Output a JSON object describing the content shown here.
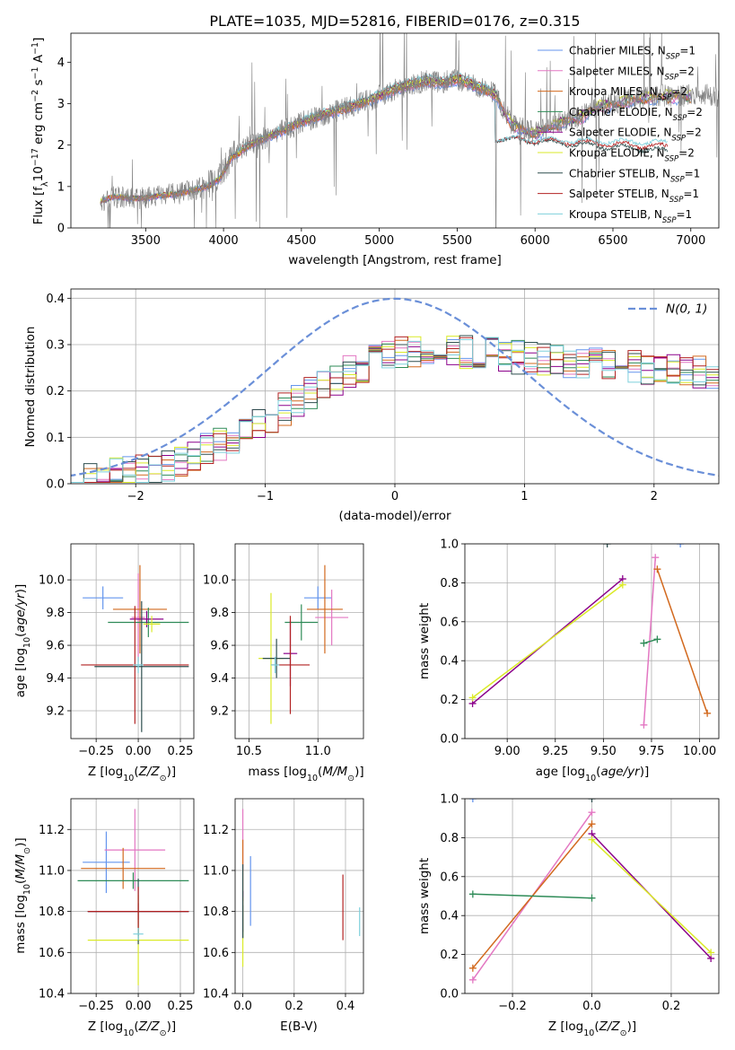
{
  "title": "PLATE=1035, MJD=52816, FIBERID=0176, z=0.315",
  "models": [
    {
      "name": "Chabrier MILES, N",
      "nssp": "1",
      "color": "#6495ED"
    },
    {
      "name": "Salpeter MILES, N",
      "nssp": "2",
      "color": "#E377C2"
    },
    {
      "name": "Kroupa MILES, N",
      "nssp": "2",
      "color": "#D2691E"
    },
    {
      "name": "Chabrier ELODIE, N",
      "nssp": "2",
      "color": "#2E8B57"
    },
    {
      "name": "Salpeter ELODIE, N",
      "nssp": "2",
      "color": "#8B008B"
    },
    {
      "name": "Kroupa ELODIE, N",
      "nssp": "2",
      "color": "#DAEA28"
    },
    {
      "name": "Chabrier STELIB, N",
      "nssp": "1",
      "color": "#2F4F4F"
    },
    {
      "name": "Salpeter STELIB, N",
      "nssp": "1",
      "color": "#B22222"
    },
    {
      "name": "Kroupa STELIB, N",
      "nssp": "1",
      "color": "#7ED0DC"
    }
  ],
  "chart_data": [
    {
      "id": "spectrum",
      "type": "line",
      "xlabel": "wavelength [Angstrom, rest frame]",
      "ylabel": "Flux [f",
      "xlim": [
        3020,
        7180
      ],
      "ylim": [
        0,
        4.7
      ],
      "xticks": [
        3500,
        4000,
        4500,
        5000,
        5500,
        6000,
        6500,
        7000
      ],
      "yticks": [
        0,
        1,
        2,
        3,
        4
      ],
      "data_color": "#808080",
      "continuum_x": [
        3210,
        3300,
        3400,
        3500,
        3600,
        3700,
        3800,
        3900,
        3980,
        4050,
        4150,
        4250,
        4350,
        4500,
        4650,
        4800,
        4950,
        5100,
        5200,
        5300,
        5400,
        5500,
        5600,
        5700,
        5750,
        5850,
        5950,
        6000,
        6100,
        6200,
        6300,
        6400,
        6500,
        6600,
        6700,
        6800
      ],
      "continuum_y": [
        0.65,
        0.75,
        0.72,
        0.72,
        0.78,
        0.82,
        0.9,
        1.0,
        1.2,
        1.7,
        1.95,
        2.15,
        2.3,
        2.55,
        2.75,
        2.9,
        3.1,
        3.35,
        3.45,
        3.55,
        3.5,
        3.6,
        3.45,
        3.3,
        3.2,
        2.5,
        2.35,
        2.3,
        2.45,
        2.6,
        2.7,
        2.95,
        3.0,
        3.1,
        3.15,
        3.2
      ],
      "model_x_end": [
        7000,
        7000,
        7000,
        7000,
        7000,
        7000,
        6850,
        6850,
        6850
      ],
      "stelib_red_end_y": [
        1.9,
        2.0,
        2.1
      ]
    },
    {
      "id": "residuals",
      "type": "step",
      "xlabel": "(data-model)/error",
      "ylabel": "Normed distribution",
      "xlim": [
        -2.5,
        2.5
      ],
      "ylim": [
        0,
        0.42
      ],
      "xticks": [
        -2,
        -1,
        0,
        1,
        2
      ],
      "yticks": [
        0.0,
        0.1,
        0.2,
        0.3,
        0.4
      ],
      "gauss_label": "N(0, 1)",
      "gauss_color": "#6A8FD8"
    },
    {
      "id": "age-vs-Z",
      "type": "errorbar",
      "xlabel": "Z [log10(Z/Z⊙)]",
      "ylabel": "age  [log10(age/yr)]",
      "xlim": [
        -0.4,
        0.33
      ],
      "ylim": [
        9.03,
        10.22
      ],
      "xticks": [
        -0.25,
        0.0,
        0.25
      ],
      "yticks": [
        9.2,
        9.4,
        9.6,
        9.8,
        10.0
      ],
      "points": [
        {
          "x": -0.21,
          "y": 9.89,
          "xerr": 0.12,
          "yerr": 0.07,
          "m": 0
        },
        {
          "x": 0.0,
          "y": 9.77,
          "xerr": 0.04,
          "yerr": 0.27,
          "m": 1
        },
        {
          "x": 0.01,
          "y": 9.82,
          "xerr": 0.16,
          "yerr": 0.27,
          "m": 2
        },
        {
          "x": 0.06,
          "y": 9.74,
          "xerr": 0.24,
          "yerr": 0.09,
          "m": 3
        },
        {
          "x": 0.05,
          "y": 9.76,
          "xerr": 0.1,
          "yerr": 0.05,
          "m": 4
        },
        {
          "x": 0.08,
          "y": 9.73,
          "xerr": 0.05,
          "yerr": 0.05,
          "m": 5
        },
        {
          "x": 0.02,
          "y": 9.47,
          "xerr": 0.28,
          "yerr": 0.4,
          "m": 6
        },
        {
          "x": -0.02,
          "y": 9.48,
          "xerr": 0.32,
          "yerr": 0.36,
          "m": 7
        },
        {
          "x": 0.0,
          "y": 9.48,
          "xerr": 0.03,
          "yerr": 0.05,
          "m": 8
        }
      ]
    },
    {
      "id": "age-vs-mass",
      "type": "errorbar",
      "xlabel": "mass [log10(M/M⊙)]",
      "ylabel": "",
      "xlim": [
        10.4,
        11.33
      ],
      "ylim": [
        9.03,
        10.22
      ],
      "xticks": [
        10.5,
        11.0
      ],
      "yticks": [
        9.2,
        9.4,
        9.6,
        9.8,
        10.0
      ],
      "points": [
        {
          "x": 11.0,
          "y": 9.89,
          "xerr": 0.1,
          "yerr": 0.07,
          "m": 0
        },
        {
          "x": 11.1,
          "y": 9.77,
          "xerr": 0.12,
          "yerr": 0.17,
          "m": 1
        },
        {
          "x": 11.05,
          "y": 9.82,
          "xerr": 0.13,
          "yerr": 0.27,
          "m": 2
        },
        {
          "x": 10.88,
          "y": 9.74,
          "xerr": 0.12,
          "yerr": 0.11,
          "m": 3
        },
        {
          "x": 10.8,
          "y": 9.55,
          "xerr": 0.05,
          "yerr": 0.2,
          "m": 4
        },
        {
          "x": 10.66,
          "y": 9.52,
          "xerr": 0.09,
          "yerr": 0.4,
          "m": 5
        },
        {
          "x": 10.7,
          "y": 9.52,
          "xerr": 0.1,
          "yerr": 0.12,
          "m": 6
        },
        {
          "x": 10.8,
          "y": 9.48,
          "xerr": 0.14,
          "yerr": 0.3,
          "m": 7
        },
        {
          "x": 10.69,
          "y": 9.48,
          "xerr": 0.03,
          "yerr": 0.05,
          "m": 8
        }
      ]
    },
    {
      "id": "weight-vs-age",
      "type": "line",
      "xlabel": "age  [log10(age/yr)]",
      "ylabel": "mass weight",
      "xlim": [
        8.78,
        10.1
      ],
      "ylim": [
        0,
        1.0
      ],
      "xticks": [
        9.0,
        9.25,
        9.5,
        9.75,
        10.0
      ],
      "yticks": [
        0.0,
        0.2,
        0.4,
        0.6,
        0.8,
        1.0
      ],
      "series": [
        {
          "m": 0,
          "x": [
            9.9
          ],
          "y": [
            1.0
          ]
        },
        {
          "m": 1,
          "x": [
            9.71,
            9.77
          ],
          "y": [
            0.07,
            0.93
          ]
        },
        {
          "m": 2,
          "x": [
            9.78,
            10.04
          ],
          "y": [
            0.87,
            0.13
          ]
        },
        {
          "m": 3,
          "x": [
            9.71,
            9.78
          ],
          "y": [
            0.49,
            0.51
          ]
        },
        {
          "m": 4,
          "x": [
            8.82,
            9.6
          ],
          "y": [
            0.18,
            0.82
          ]
        },
        {
          "m": 5,
          "x": [
            8.82,
            9.6
          ],
          "y": [
            0.21,
            0.79
          ]
        },
        {
          "m": 6,
          "x": [
            9.52
          ],
          "y": [
            1.0
          ]
        }
      ]
    },
    {
      "id": "mass-vs-Z",
      "type": "errorbar",
      "xlabel": "Z [log10(Z/Z⊙)]",
      "ylabel": "mass [log10(M/M⊙)]",
      "xlim": [
        -0.4,
        0.33
      ],
      "ylim": [
        10.4,
        11.35
      ],
      "xticks": [
        -0.25,
        0.0,
        0.25
      ],
      "yticks": [
        10.4,
        10.6,
        10.8,
        11.0,
        11.2
      ],
      "points": [
        {
          "x": -0.19,
          "y": 11.04,
          "xerr": 0.14,
          "yerr": 0.15,
          "m": 0
        },
        {
          "x": -0.02,
          "y": 11.1,
          "xerr": 0.18,
          "yerr": 0.2,
          "m": 1
        },
        {
          "x": -0.09,
          "y": 11.01,
          "xerr": 0.25,
          "yerr": 0.1,
          "m": 2
        },
        {
          "x": -0.03,
          "y": 10.95,
          "xerr": 0.33,
          "yerr": 0.04,
          "m": 3
        },
        {
          "x": 0.0,
          "y": 10.8,
          "xerr": 0.3,
          "yerr": 0.04,
          "m": 4
        },
        {
          "x": 0.0,
          "y": 10.66,
          "xerr": 0.3,
          "yerr": 0.22,
          "m": 5
        },
        {
          "x": 0.0,
          "y": 10.8,
          "xerr": 0.3,
          "yerr": 0.16,
          "m": 6
        },
        {
          "x": 0.0,
          "y": 10.8,
          "xerr": 0.3,
          "yerr": 0.12,
          "m": 7
        },
        {
          "x": 0.0,
          "y": 10.69,
          "xerr": 0.03,
          "yerr": 0.03,
          "m": 8
        }
      ]
    },
    {
      "id": "mass-vs-ebv",
      "type": "errorbar",
      "xlabel": "E(B-V)",
      "ylabel": "",
      "xlim": [
        -0.03,
        0.47
      ],
      "ylim": [
        10.4,
        11.35
      ],
      "xticks": [
        0.0,
        0.2,
        0.4
      ],
      "yticks": [
        10.4,
        10.6,
        10.8,
        11.0,
        11.2
      ],
      "points": [
        {
          "x": 0.03,
          "y": 10.9,
          "xerr": 0.0,
          "yerr": 0.17,
          "m": 0
        },
        {
          "x": 0.0,
          "y": 11.15,
          "xerr": 0.0,
          "yerr": 0.15,
          "m": 1
        },
        {
          "x": 0.0,
          "y": 11.0,
          "xerr": 0.0,
          "yerr": 0.15,
          "m": 2
        },
        {
          "x": 0.0,
          "y": 10.75,
          "xerr": 0.0,
          "yerr": 0.08,
          "m": 3
        },
        {
          "x": 0.0,
          "y": 10.8,
          "xerr": 0.0,
          "yerr": 0.1,
          "m": 4
        },
        {
          "x": 0.0,
          "y": 10.7,
          "xerr": 0.0,
          "yerr": 0.17,
          "m": 5
        },
        {
          "x": 0.0,
          "y": 10.85,
          "xerr": 0.0,
          "yerr": 0.18,
          "m": 6
        },
        {
          "x": 0.39,
          "y": 10.82,
          "xerr": 0.0,
          "yerr": 0.16,
          "m": 7
        },
        {
          "x": 0.455,
          "y": 10.75,
          "xerr": 0.0,
          "yerr": 0.07,
          "m": 8
        }
      ]
    },
    {
      "id": "weight-vs-Z",
      "type": "line",
      "xlabel": "Z [log10(Z/Z⊙)]",
      "ylabel": "mass weight",
      "xlim": [
        -0.32,
        0.32
      ],
      "ylim": [
        0,
        1.0
      ],
      "xticks": [
        -0.2,
        0.0,
        0.2
      ],
      "yticks": [
        0.0,
        0.2,
        0.4,
        0.6,
        0.8,
        1.0
      ],
      "series": [
        {
          "m": 0,
          "x": [
            -0.3
          ],
          "y": [
            1.0
          ]
        },
        {
          "m": 1,
          "x": [
            -0.3,
            0.0
          ],
          "y": [
            0.07,
            0.93
          ]
        },
        {
          "m": 2,
          "x": [
            -0.3,
            0.0
          ],
          "y": [
            0.13,
            0.87
          ]
        },
        {
          "m": 3,
          "x": [
            -0.3,
            0.0
          ],
          "y": [
            0.51,
            0.49
          ]
        },
        {
          "m": 4,
          "x": [
            0.0,
            0.3
          ],
          "y": [
            0.82,
            0.18
          ]
        },
        {
          "m": 5,
          "x": [
            0.0,
            0.3
          ],
          "y": [
            0.79,
            0.21
          ]
        },
        {
          "m": 6,
          "x": [
            0.0
          ],
          "y": [
            1.0
          ]
        }
      ]
    }
  ]
}
